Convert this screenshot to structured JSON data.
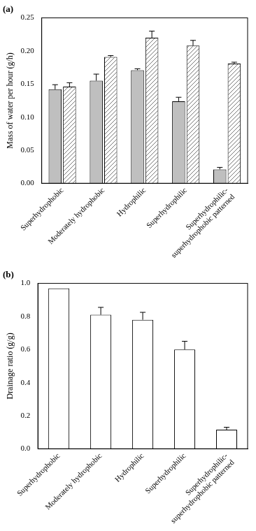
{
  "chart_data": [
    {
      "type": "bar",
      "title": "(a)",
      "y_label": "Mass of water per hour (g/h)",
      "categories": [
        "Superhydrophobic",
        "Moderately hydrophobic",
        "Hydrophilic",
        "Superhydrophilic",
        "Superhydrophilic-superhydrophobic patterned"
      ],
      "series": [
        {
          "color": "#bfbfbf",
          "values": [
            0.142,
            0.155,
            0.171,
            0.124,
            0.021
          ],
          "errors": [
            0.007,
            0.01,
            0.002,
            0.006,
            0.003
          ]
        },
        {
          "color": "#ffffff",
          "values": [
            0.146,
            0.191,
            0.22,
            0.208,
            0.181
          ],
          "errors": [
            0.006,
            0.002,
            0.01,
            0.008,
            0.002
          ]
        }
      ],
      "ylim": [
        0,
        0.25
      ],
      "yticks": [
        {
          "value": 0,
          "label": "0.00"
        },
        {
          "value": 0.05,
          "label": "0.05"
        },
        {
          "value": 0.1,
          "label": "0.10"
        },
        {
          "value": 0.15,
          "label": "0.15"
        },
        {
          "value": 0.2,
          "label": "0.20"
        },
        {
          "value": 0.25,
          "label": "0.25"
        }
      ],
      "grid": false
    },
    {
      "type": "bar",
      "title": "(b)",
      "y_label": "Drainage ratio (g/g)",
      "categories": [
        "Superhydrophobic",
        "Moderately hydrophobic",
        "Hydrophilic",
        "Superhydrophilic",
        "Superhydrophilic-superhydrophobic patterned"
      ],
      "values": [
        0.97,
        0.81,
        0.78,
        0.6,
        0.115
      ],
      "errors": [
        null,
        0.045,
        0.045,
        0.05,
        0.015
      ],
      "color": "#ffffff",
      "ylim": [
        0,
        1
      ],
      "yticks": [
        {
          "value": 0,
          "label": "0.0"
        },
        {
          "value": 0.2,
          "label": "0.2"
        },
        {
          "value": 0.4,
          "label": "0.4"
        },
        {
          "value": 0.6,
          "label": "0.6"
        },
        {
          "value": 0.8,
          "label": "0.8"
        },
        {
          "value": 1,
          "label": "1.0"
        }
      ],
      "grid": false
    }
  ]
}
